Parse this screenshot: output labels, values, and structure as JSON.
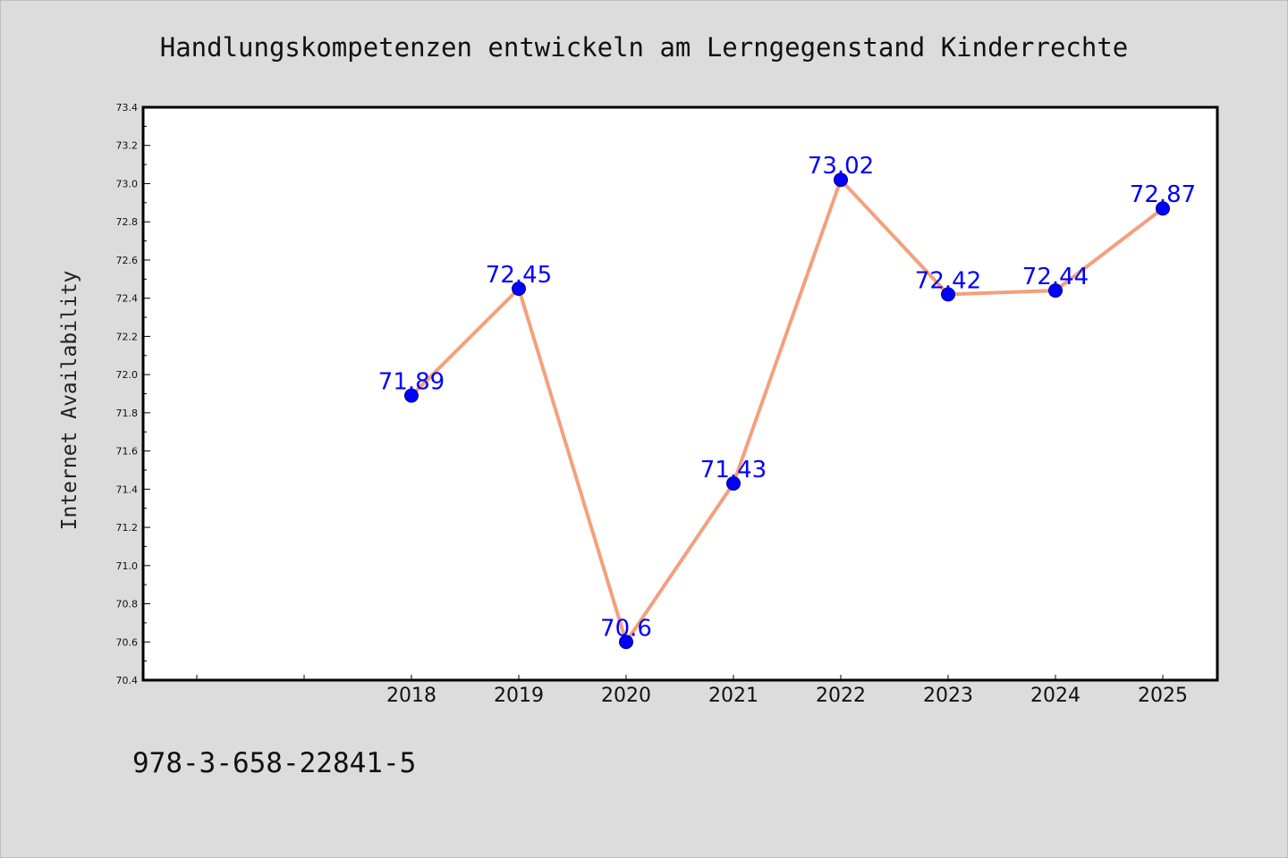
{
  "chart_data": {
    "type": "line",
    "title": "Handlungskompetenzen entwickeln am Lerngegenstand Kinderrechte",
    "xlabel": "",
    "ylabel": "Internet Availability",
    "categories": [
      "2018",
      "2019",
      "2020",
      "2021",
      "2022",
      "2023",
      "2024",
      "2025"
    ],
    "series": [
      {
        "values": [
          71.89,
          72.45,
          70.6,
          71.43,
          73.02,
          72.42,
          72.44,
          72.87
        ],
        "labels": [
          "71.89",
          "72.45",
          "70.6",
          "71.43",
          "73.02",
          "72.42",
          "72.44",
          "72.87"
        ],
        "line_color": "#f4a07c",
        "marker_color": "#0000ff"
      }
    ],
    "ylim": [
      70.4,
      73.4
    ],
    "yticks": [
      "70.4",
      "70.6",
      "70.8",
      "71.0",
      "71.2",
      "71.4",
      "71.6",
      "71.8",
      "72.0",
      "72.2",
      "72.4",
      "72.6",
      "72.8",
      "73.0",
      "73.2",
      "73.4"
    ],
    "grid": false,
    "legend": "none"
  },
  "footer": {
    "isbn": "978-3-658-22841-5"
  }
}
